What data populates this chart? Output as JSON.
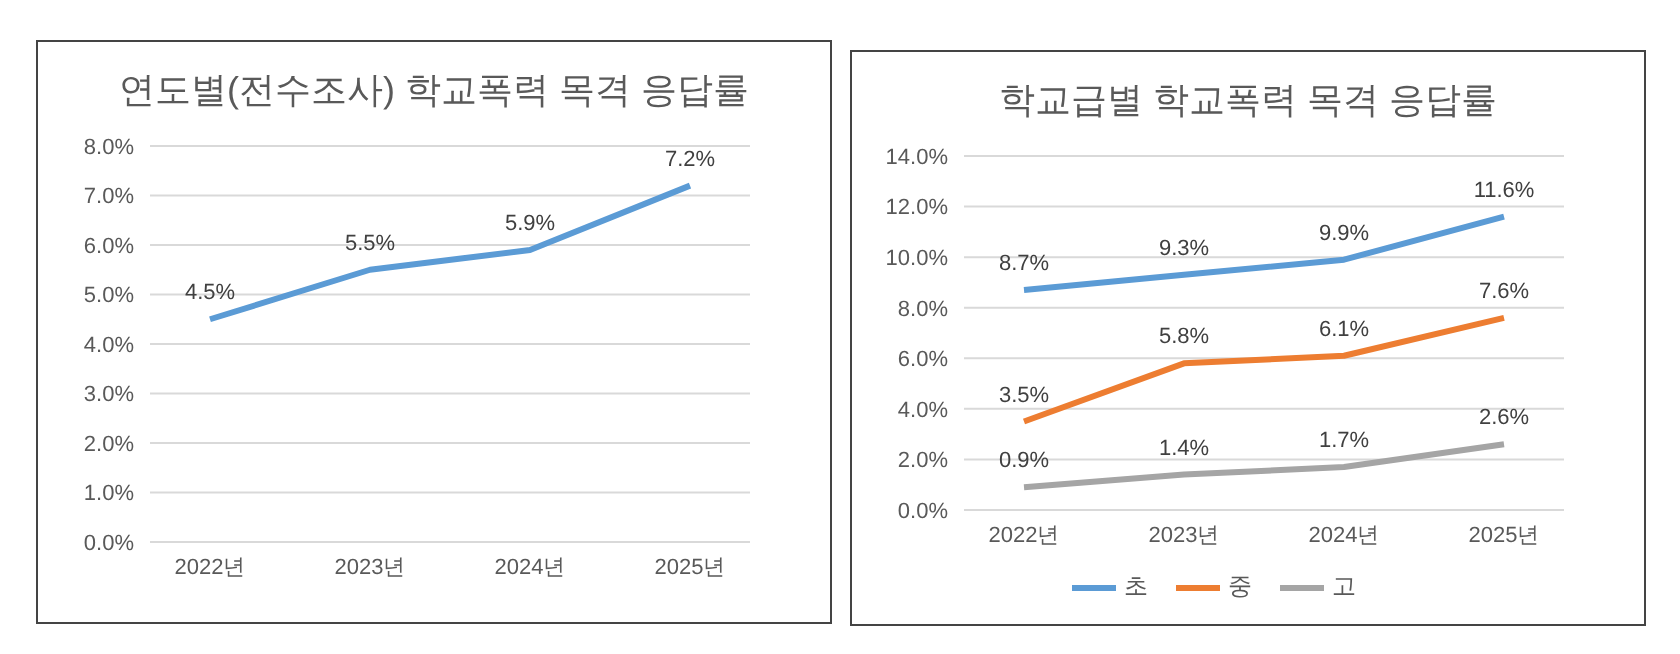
{
  "chart_data": [
    {
      "type": "line",
      "title": "연도별(전수조사) 학교폭력 목격 응답률",
      "categories": [
        "2022년",
        "2023년",
        "2024년",
        "2025년"
      ],
      "series": [
        {
          "color": "#5b9bd5",
          "values": [
            4.5,
            5.5,
            5.9,
            7.2
          ],
          "value_labels": [
            "4.5%",
            "5.5%",
            "5.9%",
            "7.2%"
          ]
        }
      ],
      "ylim": [
        0,
        8
      ],
      "yticks": [
        {
          "value": 0,
          "label": "0.0%"
        },
        {
          "value": 1,
          "label": "1.0%"
        },
        {
          "value": 2,
          "label": "2.0%"
        },
        {
          "value": 3,
          "label": "3.0%"
        },
        {
          "value": 4,
          "label": "4.0%"
        },
        {
          "value": 5,
          "label": "5.0%"
        },
        {
          "value": 6,
          "label": "6.0%"
        },
        {
          "value": 7,
          "label": "7.0%"
        },
        {
          "value": 8,
          "label": "8.0%"
        }
      ],
      "grid": "y",
      "legend": false
    },
    {
      "type": "line",
      "title": "학교급별 학교폭력 목격 응답률",
      "categories": [
        "2022년",
        "2023년",
        "2024년",
        "2025년"
      ],
      "series": [
        {
          "name": "초",
          "color": "#5b9bd5",
          "values": [
            8.7,
            9.3,
            9.9,
            11.6
          ],
          "value_labels": [
            "8.7%",
            "9.3%",
            "9.9%",
            "11.6%"
          ]
        },
        {
          "name": "중",
          "color": "#ed7d31",
          "values": [
            3.5,
            5.8,
            6.1,
            7.6
          ],
          "value_labels": [
            "3.5%",
            "5.8%",
            "6.1%",
            "7.6%"
          ]
        },
        {
          "name": "고",
          "color": "#a5a5a5",
          "values": [
            0.9,
            1.4,
            1.7,
            2.6
          ],
          "value_labels": [
            "0.9%",
            "1.4%",
            "1.7%",
            "2.6%"
          ]
        }
      ],
      "ylim": [
        0,
        14
      ],
      "yticks": [
        {
          "value": 0,
          "label": "0.0%"
        },
        {
          "value": 2,
          "label": "2.0%"
        },
        {
          "value": 4,
          "label": "4.0%"
        },
        {
          "value": 6,
          "label": "6.0%"
        },
        {
          "value": 8,
          "label": "8.0%"
        },
        {
          "value": 10,
          "label": "10.0%"
        },
        {
          "value": 12,
          "label": "12.0%"
        },
        {
          "value": 14,
          "label": "14.0%"
        }
      ],
      "grid": "y",
      "legend": "bottom"
    }
  ]
}
